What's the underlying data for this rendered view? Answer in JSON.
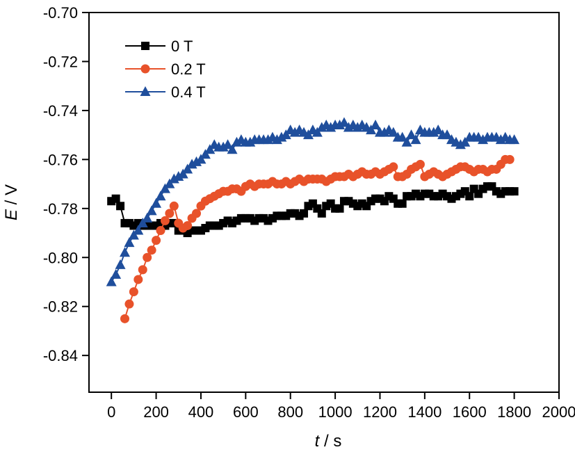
{
  "chart_data": {
    "type": "line",
    "xlabel_var": "t",
    "xlabel_unit": " / s",
    "ylabel_var": "E",
    "ylabel_unit": " / V",
    "xlim": [
      -100,
      2000
    ],
    "ylim": [
      -0.855,
      -0.7
    ],
    "x_ticks": [
      0,
      200,
      400,
      600,
      800,
      1000,
      1200,
      1400,
      1600,
      1800,
      2000
    ],
    "y_ticks": [
      -0.84,
      -0.82,
      -0.8,
      -0.78,
      -0.76,
      -0.74,
      -0.72,
      -0.7
    ],
    "y_tick_labels": [
      "-0.84",
      "-0.82",
      "-0.80",
      "-0.78",
      "-0.76",
      "-0.74",
      "-0.72",
      "-0.70"
    ],
    "grid": false,
    "legend_position": "top-left",
    "series": [
      {
        "name": "0 T",
        "color": "#000000",
        "marker": "square",
        "x": [
          0,
          20,
          40,
          60,
          80,
          100,
          120,
          140,
          160,
          180,
          200,
          220,
          240,
          260,
          280,
          300,
          320,
          340,
          360,
          380,
          400,
          420,
          440,
          460,
          480,
          500,
          520,
          540,
          560,
          580,
          600,
          620,
          640,
          660,
          680,
          700,
          720,
          740,
          760,
          780,
          800,
          820,
          840,
          860,
          880,
          900,
          920,
          940,
          960,
          980,
          1000,
          1020,
          1040,
          1060,
          1080,
          1100,
          1120,
          1140,
          1160,
          1180,
          1200,
          1220,
          1240,
          1260,
          1280,
          1300,
          1320,
          1340,
          1360,
          1380,
          1400,
          1420,
          1440,
          1460,
          1480,
          1500,
          1520,
          1540,
          1560,
          1580,
          1600,
          1620,
          1640,
          1660,
          1680,
          1700,
          1720,
          1740,
          1760,
          1780,
          1800
        ],
        "y": [
          -0.777,
          -0.776,
          -0.779,
          -0.786,
          -0.786,
          -0.787,
          -0.786,
          -0.787,
          -0.787,
          -0.787,
          -0.787,
          -0.786,
          -0.787,
          -0.786,
          -0.786,
          -0.789,
          -0.789,
          -0.79,
          -0.789,
          -0.789,
          -0.789,
          -0.788,
          -0.787,
          -0.787,
          -0.787,
          -0.786,
          -0.785,
          -0.786,
          -0.785,
          -0.784,
          -0.784,
          -0.784,
          -0.785,
          -0.784,
          -0.784,
          -0.785,
          -0.784,
          -0.783,
          -0.783,
          -0.783,
          -0.782,
          -0.782,
          -0.783,
          -0.782,
          -0.779,
          -0.778,
          -0.78,
          -0.782,
          -0.779,
          -0.778,
          -0.78,
          -0.78,
          -0.777,
          -0.777,
          -0.778,
          -0.779,
          -0.778,
          -0.779,
          -0.777,
          -0.776,
          -0.776,
          -0.777,
          -0.775,
          -0.776,
          -0.778,
          -0.778,
          -0.775,
          -0.775,
          -0.774,
          -0.775,
          -0.774,
          -0.774,
          -0.775,
          -0.775,
          -0.774,
          -0.775,
          -0.776,
          -0.775,
          -0.774,
          -0.773,
          -0.775,
          -0.772,
          -0.774,
          -0.772,
          -0.771,
          -0.771,
          -0.773,
          -0.774,
          -0.773,
          -0.773,
          -0.773
        ]
      },
      {
        "name": "0.2 T",
        "color": "#E8522A",
        "marker": "circle",
        "x": [
          60,
          80,
          100,
          120,
          140,
          160,
          180,
          200,
          220,
          240,
          260,
          280,
          300,
          320,
          340,
          360,
          380,
          400,
          420,
          440,
          460,
          480,
          500,
          520,
          540,
          560,
          580,
          600,
          620,
          640,
          660,
          680,
          700,
          720,
          740,
          760,
          780,
          800,
          820,
          840,
          860,
          880,
          900,
          920,
          940,
          960,
          980,
          1000,
          1020,
          1040,
          1060,
          1080,
          1100,
          1120,
          1140,
          1160,
          1180,
          1200,
          1220,
          1240,
          1260,
          1280,
          1300,
          1320,
          1340,
          1360,
          1380,
          1400,
          1420,
          1440,
          1460,
          1480,
          1500,
          1520,
          1540,
          1560,
          1580,
          1600,
          1620,
          1640,
          1660,
          1680,
          1700,
          1720,
          1740,
          1760,
          1780
        ],
        "y": [
          -0.825,
          -0.819,
          -0.814,
          -0.809,
          -0.805,
          -0.8,
          -0.797,
          -0.793,
          -0.789,
          -0.785,
          -0.782,
          -0.779,
          -0.786,
          -0.788,
          -0.787,
          -0.784,
          -0.782,
          -0.779,
          -0.777,
          -0.776,
          -0.775,
          -0.774,
          -0.773,
          -0.773,
          -0.772,
          -0.772,
          -0.773,
          -0.771,
          -0.77,
          -0.771,
          -0.77,
          -0.77,
          -0.77,
          -0.769,
          -0.77,
          -0.77,
          -0.769,
          -0.77,
          -0.769,
          -0.768,
          -0.769,
          -0.768,
          -0.768,
          -0.768,
          -0.768,
          -0.769,
          -0.768,
          -0.767,
          -0.767,
          -0.767,
          -0.766,
          -0.767,
          -0.766,
          -0.765,
          -0.766,
          -0.766,
          -0.765,
          -0.766,
          -0.765,
          -0.764,
          -0.763,
          -0.767,
          -0.767,
          -0.766,
          -0.764,
          -0.763,
          -0.762,
          -0.767,
          -0.766,
          -0.765,
          -0.766,
          -0.767,
          -0.766,
          -0.765,
          -0.764,
          -0.763,
          -0.763,
          -0.764,
          -0.765,
          -0.764,
          -0.764,
          -0.765,
          -0.764,
          -0.764,
          -0.762,
          -0.76,
          -0.76
        ]
      },
      {
        "name": "0.4 T",
        "color": "#1F4E9C",
        "marker": "triangle",
        "x": [
          0,
          20,
          40,
          60,
          80,
          100,
          120,
          140,
          160,
          180,
          200,
          220,
          240,
          260,
          280,
          300,
          320,
          340,
          360,
          380,
          400,
          420,
          440,
          460,
          480,
          500,
          520,
          540,
          560,
          580,
          600,
          620,
          640,
          660,
          680,
          700,
          720,
          740,
          760,
          780,
          800,
          820,
          840,
          860,
          880,
          900,
          920,
          940,
          960,
          980,
          1000,
          1020,
          1040,
          1060,
          1080,
          1100,
          1120,
          1140,
          1160,
          1180,
          1200,
          1220,
          1240,
          1260,
          1280,
          1300,
          1320,
          1340,
          1360,
          1380,
          1400,
          1420,
          1440,
          1460,
          1480,
          1500,
          1520,
          1540,
          1560,
          1580,
          1600,
          1620,
          1640,
          1660,
          1680,
          1700,
          1720,
          1740,
          1760,
          1780,
          1800
        ],
        "y": [
          -0.81,
          -0.807,
          -0.803,
          -0.798,
          -0.794,
          -0.791,
          -0.789,
          -0.786,
          -0.784,
          -0.781,
          -0.778,
          -0.775,
          -0.772,
          -0.77,
          -0.768,
          -0.767,
          -0.766,
          -0.764,
          -0.762,
          -0.761,
          -0.76,
          -0.758,
          -0.756,
          -0.754,
          -0.755,
          -0.755,
          -0.754,
          -0.756,
          -0.753,
          -0.752,
          -0.753,
          -0.753,
          -0.752,
          -0.752,
          -0.752,
          -0.752,
          -0.751,
          -0.752,
          -0.751,
          -0.75,
          -0.748,
          -0.749,
          -0.748,
          -0.749,
          -0.75,
          -0.748,
          -0.749,
          -0.747,
          -0.746,
          -0.747,
          -0.746,
          -0.746,
          -0.745,
          -0.747,
          -0.746,
          -0.747,
          -0.746,
          -0.747,
          -0.748,
          -0.746,
          -0.749,
          -0.749,
          -0.748,
          -0.749,
          -0.751,
          -0.751,
          -0.753,
          -0.75,
          -0.752,
          -0.748,
          -0.749,
          -0.749,
          -0.749,
          -0.748,
          -0.75,
          -0.75,
          -0.752,
          -0.753,
          -0.754,
          -0.753,
          -0.751,
          -0.751,
          -0.751,
          -0.752,
          -0.751,
          -0.751,
          -0.751,
          -0.752,
          -0.751,
          -0.752,
          -0.752
        ]
      }
    ]
  }
}
